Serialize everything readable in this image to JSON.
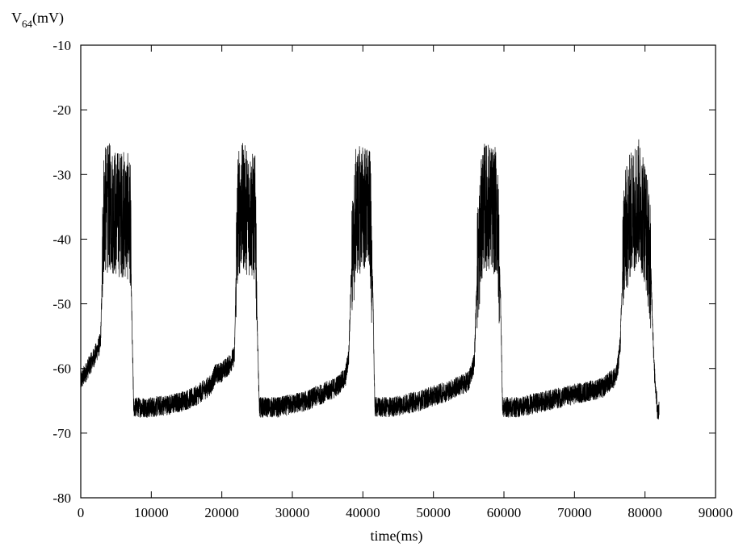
{
  "chart_data": {
    "type": "line",
    "title": "",
    "xlabel": "time(ms)",
    "ylabel": {
      "main": "V",
      "subscript": "64",
      "unit": "(mV)"
    },
    "xlim": [
      0,
      90000
    ],
    "ylim": [
      -80,
      -10
    ],
    "xticks": [
      0,
      10000,
      20000,
      30000,
      40000,
      50000,
      60000,
      70000,
      80000,
      90000
    ],
    "yticks": [
      -80,
      -70,
      -60,
      -50,
      -40,
      -30,
      -20,
      -10
    ],
    "xtick_labels": [
      "0",
      "10000",
      "20000",
      "30000",
      "40000",
      "50000",
      "60000",
      "70000",
      "80000",
      "90000"
    ],
    "ytick_labels": [
      "-80",
      "-70",
      "-60",
      "-50",
      "-40",
      "-30",
      "-20",
      "-10"
    ],
    "grid": false,
    "legend": "none",
    "line_color": "#000000",
    "series": [
      {
        "x": [
          0,
          1000,
          2000,
          2800,
          3000,
          3200,
          4000,
          5000,
          6000,
          7000,
          7200,
          7500,
          10000,
          13000,
          16000,
          18500,
          19000,
          20000,
          21000,
          21800,
          22000,
          22300,
          23000,
          24000,
          24800,
          25000,
          25300,
          28000,
          32000,
          36000,
          37500,
          38000,
          38300,
          39000,
          40000,
          41000,
          41400,
          41700,
          44000,
          48000,
          52000,
          55000,
          55800,
          56200,
          57000,
          58000,
          59000,
          59500,
          59800,
          62000,
          66000,
          70000,
          74000,
          76000,
          76500,
          77000,
          78000,
          79000,
          80000,
          80800,
          81300,
          81800,
          82000
        ],
        "y": [
          -62,
          -60,
          -58,
          -56,
          -48,
          -36,
          -35,
          -36,
          -36,
          -37,
          -50,
          -66,
          -66,
          -65.5,
          -64.5,
          -62.5,
          -61,
          -60.5,
          -59.5,
          -58,
          -46,
          -36,
          -35,
          -36,
          -37,
          -52,
          -66,
          -66,
          -65,
          -63,
          -61.5,
          -58,
          -47,
          -36,
          -35,
          -36,
          -48,
          -66,
          -66,
          -65,
          -63.5,
          -62,
          -59,
          -45,
          -35,
          -35,
          -36,
          -48,
          -66,
          -66,
          -65,
          -64,
          -63,
          -61,
          -56,
          -40,
          -36,
          -34,
          -37,
          -44,
          -60,
          -67,
          -66
        ]
      }
    ],
    "series_noise_amplitude_mV": {
      "burst": 10,
      "resting": 1.6
    }
  }
}
